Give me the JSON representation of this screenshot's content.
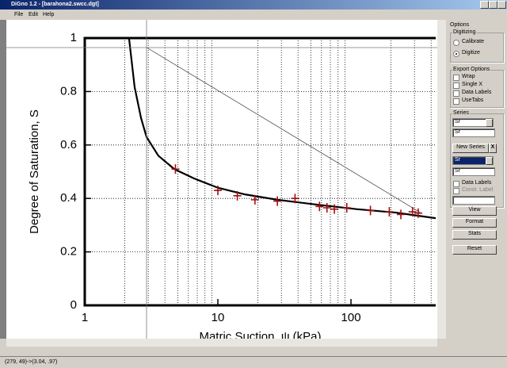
{
  "window": {
    "title": "DiGno 1.2 - [barahona2.swcc.dgt]",
    "menu": [
      "File",
      "Edit",
      "Help"
    ],
    "status": "(279, 49)->(3.04, .97)"
  },
  "chart_data": {
    "type": "scatter",
    "y_label": "Degree of Saturation, S",
    "x_label": "Matric Suction, ψ (kPa)",
    "xlog": true,
    "xlim": [
      1,
      433
    ],
    "ylim": [
      0,
      1
    ],
    "xticks": [
      1,
      10,
      100
    ],
    "yticks": [
      0,
      0.2,
      0.4,
      0.6,
      0.8,
      1
    ],
    "xgrid": [
      2,
      3,
      4,
      5,
      6,
      7,
      8,
      9,
      20,
      30,
      40,
      50,
      60,
      70,
      80,
      90,
      200,
      300,
      400
    ],
    "ygrid": [
      0.2,
      0.4,
      0.6,
      0.8
    ],
    "points": {
      "color": "#a01010",
      "x": [
        4.8,
        10,
        14,
        19,
        28,
        38,
        58,
        66,
        75,
        93,
        140,
        194,
        237,
        290,
        320
      ],
      "y": [
        0.51,
        0.43,
        0.41,
        0.395,
        0.39,
        0.4,
        0.37,
        0.365,
        0.36,
        0.365,
        0.355,
        0.35,
        0.34,
        0.35,
        0.345
      ]
    },
    "curve": {
      "color": "#000000",
      "x": [
        2.15,
        2.37,
        2.65,
        2.91,
        3.57,
        4.7,
        6.6,
        10,
        16,
        28,
        55,
        110,
        217,
        433
      ],
      "y": [
        1,
        0.816,
        0.7,
        0.63,
        0.56,
        0.51,
        0.475,
        0.44,
        0.415,
        0.395,
        0.377,
        0.36,
        0.347,
        0.326
      ]
    },
    "reference_line": {
      "color": "#555555",
      "x": [
        2.91,
        330
      ],
      "y": [
        0.965,
        0.348
      ]
    }
  },
  "panel": {
    "title": "Options",
    "digitizing": {
      "title": "Digitizing",
      "options": [
        "Calibrate",
        "Digitize"
      ],
      "selected": 1
    },
    "export": {
      "title": "Export Options",
      "options": [
        "Wrap",
        "Single X",
        "Data Labels",
        "UseTabs"
      ]
    },
    "series": {
      "title": "Series",
      "select1": "Sr",
      "input1": "Sr",
      "new_button": "New Series",
      "close_button": "X",
      "select2": "Sr",
      "input2": "Sr",
      "checks": [
        "Data Labels",
        "Const. Label"
      ]
    },
    "buttons": [
      "View",
      "Format",
      "Stats",
      "Reset"
    ]
  }
}
